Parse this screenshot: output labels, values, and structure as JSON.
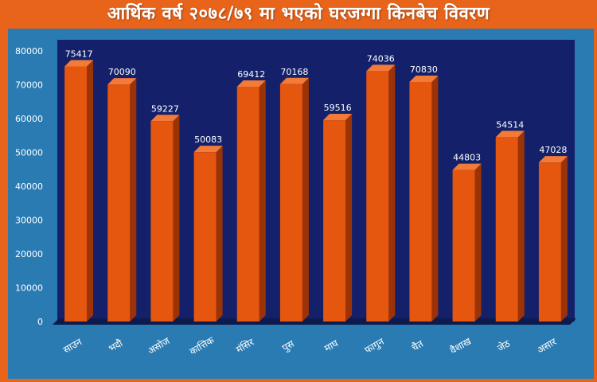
{
  "title": "आर्थिक वर्ष २०७८/७९ मा भएको घरजग्गा किनबेच विवरण",
  "colors": {
    "background": "#e8641a",
    "panel": "#2b7bb3",
    "plot_area": "#14216a",
    "bar_front": "#e5560f",
    "bar_side": "#9c3306",
    "bar_top": "#f47a38",
    "floor": "#0d1a4d"
  },
  "chart_data": {
    "type": "bar",
    "title": "आर्थिक वर्ष २०७८/७९ मा भएको घरजग्गा किनबेच विवरण",
    "categories": [
      "साउन",
      "भदौ",
      "असोज",
      "कात्तिक",
      "मंसिर",
      "पुस",
      "माघ",
      "फागुन",
      "चैत",
      "वैशाख",
      "जेठ",
      "असार"
    ],
    "values": [
      75417,
      70090,
      59227,
      50083,
      69412,
      70168,
      59516,
      74036,
      70830,
      44803,
      54514,
      47028
    ],
    "ylim": [
      0,
      80000
    ],
    "yticks": [
      "0",
      "10000",
      "20000",
      "30000",
      "40000",
      "50000",
      "60000",
      "70000",
      "80000"
    ],
    "xlabel": "",
    "ylabel": "",
    "grid": false,
    "style": "3d-bar"
  }
}
